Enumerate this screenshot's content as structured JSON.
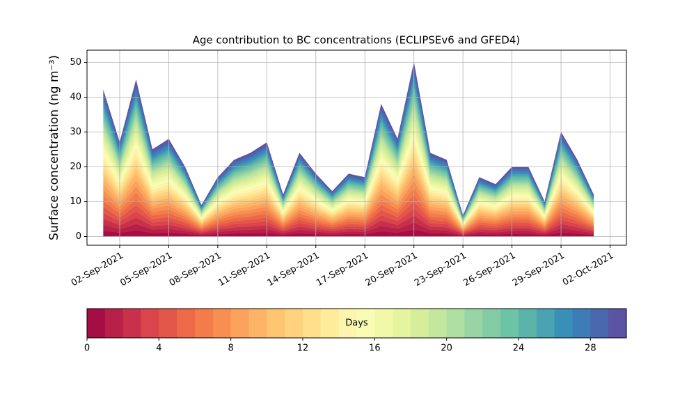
{
  "chart_data": {
    "type": "stackplot",
    "title": "Age contribution to BC concentrations (ECLIPSEv6 and GFED4)",
    "ylabel": "Surface concentration (ng m⁻³)",
    "x": [
      "2021-09-01",
      "2021-09-02",
      "2021-09-03",
      "2021-09-04",
      "2021-09-05",
      "2021-09-06",
      "2021-09-07",
      "2021-09-08",
      "2021-09-09",
      "2021-09-10",
      "2021-09-11",
      "2021-09-12",
      "2021-09-13",
      "2021-09-14",
      "2021-09-15",
      "2021-09-16",
      "2021-09-17",
      "2021-09-18",
      "2021-09-19",
      "2021-09-20",
      "2021-09-21",
      "2021-09-22",
      "2021-09-23",
      "2021-09-24",
      "2021-09-25",
      "2021-09-26",
      "2021-09-27",
      "2021-09-28",
      "2021-09-29",
      "2021-09-30",
      "2021-10-01"
    ],
    "xlim": [
      "2021-08-31",
      "2021-10-03"
    ],
    "xticks": [
      {
        "value": "2021-09-02",
        "label": "02-Sep-2021"
      },
      {
        "value": "2021-09-05",
        "label": "05-Sep-2021"
      },
      {
        "value": "2021-09-08",
        "label": "08-Sep-2021"
      },
      {
        "value": "2021-09-11",
        "label": "11-Sep-2021"
      },
      {
        "value": "2021-09-14",
        "label": "14-Sep-2021"
      },
      {
        "value": "2021-09-17",
        "label": "17-Sep-2021"
      },
      {
        "value": "2021-09-20",
        "label": "20-Sep-2021"
      },
      {
        "value": "2021-09-23",
        "label": "23-Sep-2021"
      },
      {
        "value": "2021-09-26",
        "label": "26-Sep-2021"
      },
      {
        "value": "2021-09-29",
        "label": "29-Sep-2021"
      },
      {
        "value": "2021-10-02",
        "label": "02-Oct-2021"
      }
    ],
    "ylim": [
      -2.5,
      53.5
    ],
    "yticks": [
      0,
      10,
      20,
      30,
      40,
      50
    ],
    "grid": true,
    "series": [
      {
        "color": "#a50e45",
        "values": [
          1.68,
          1.08,
          1.8,
          1.0,
          1.12,
          0.8,
          0.36,
          0.68,
          0.88,
          0.96,
          1.08,
          0.48,
          0.96,
          0.72,
          0.52,
          0.72,
          0.68,
          1.52,
          1.12,
          2.0,
          0.96,
          0.88,
          0.24,
          0.68,
          0.6,
          0.8,
          0.8,
          0.4,
          1.2,
          0.88,
          0.48
        ]
      },
      {
        "color": "#b8204a",
        "values": [
          1.68,
          1.08,
          1.8,
          1.0,
          1.12,
          0.8,
          0.36,
          0.68,
          0.88,
          0.96,
          1.08,
          0.48,
          0.96,
          0.72,
          0.52,
          0.72,
          0.68,
          1.52,
          1.12,
          2.0,
          0.96,
          0.88,
          0.24,
          0.68,
          0.6,
          0.8,
          0.8,
          0.4,
          1.2,
          0.88,
          0.48
        ]
      },
      {
        "color": "#c9314b",
        "values": [
          1.68,
          1.08,
          1.8,
          1.0,
          1.12,
          0.8,
          0.36,
          0.68,
          0.88,
          0.96,
          1.08,
          0.48,
          0.96,
          0.72,
          0.52,
          0.72,
          0.68,
          1.52,
          1.12,
          2.0,
          0.96,
          0.88,
          0.24,
          0.68,
          0.6,
          0.8,
          0.8,
          0.4,
          1.2,
          0.88,
          0.48
        ]
      },
      {
        "color": "#d9444d",
        "values": [
          1.68,
          1.08,
          1.8,
          1.0,
          1.12,
          0.8,
          0.36,
          0.68,
          0.88,
          0.96,
          1.08,
          0.48,
          0.96,
          0.72,
          0.52,
          0.72,
          0.68,
          1.52,
          1.12,
          2.0,
          0.96,
          0.88,
          0.24,
          0.68,
          0.6,
          0.8,
          0.8,
          0.4,
          1.2,
          0.88,
          0.48
        ]
      },
      {
        "color": "#e3574b",
        "values": [
          1.68,
          1.08,
          1.8,
          1.0,
          1.12,
          0.8,
          0.36,
          0.68,
          0.88,
          0.96,
          1.08,
          0.48,
          0.96,
          0.72,
          0.52,
          0.72,
          0.68,
          1.52,
          1.12,
          2.0,
          0.96,
          0.88,
          0.24,
          0.68,
          0.6,
          0.8,
          0.8,
          0.4,
          1.2,
          0.88,
          0.48
        ]
      },
      {
        "color": "#ec6a47",
        "values": [
          1.68,
          1.08,
          1.8,
          1.0,
          1.12,
          0.8,
          0.36,
          0.68,
          0.88,
          0.96,
          1.08,
          0.48,
          0.96,
          0.72,
          0.52,
          0.72,
          0.68,
          1.52,
          1.12,
          2.0,
          0.96,
          0.88,
          0.24,
          0.68,
          0.6,
          0.8,
          0.8,
          0.4,
          1.2,
          0.88,
          0.48
        ]
      },
      {
        "color": "#f47c4a",
        "values": [
          1.68,
          1.08,
          1.8,
          1.0,
          1.12,
          0.8,
          0.36,
          0.68,
          0.88,
          0.96,
          1.08,
          0.48,
          0.96,
          0.72,
          0.52,
          0.72,
          0.68,
          1.52,
          1.12,
          2.0,
          0.96,
          0.88,
          0.24,
          0.68,
          0.6,
          0.8,
          0.8,
          0.4,
          1.2,
          0.88,
          0.48
        ]
      },
      {
        "color": "#f88f52",
        "values": [
          1.68,
          1.08,
          1.8,
          1.0,
          1.12,
          0.8,
          0.36,
          0.68,
          0.88,
          0.96,
          1.08,
          0.48,
          0.96,
          0.72,
          0.52,
          0.72,
          0.68,
          1.52,
          1.12,
          2.0,
          0.96,
          0.88,
          0.24,
          0.68,
          0.6,
          0.8,
          0.8,
          0.4,
          1.2,
          0.88,
          0.48
        ]
      },
      {
        "color": "#fba25c",
        "values": [
          1.68,
          1.08,
          1.8,
          1.0,
          1.12,
          0.8,
          0.36,
          0.68,
          0.88,
          0.96,
          1.08,
          0.48,
          0.96,
          0.72,
          0.52,
          0.72,
          0.68,
          1.52,
          1.12,
          2.0,
          0.96,
          0.88,
          0.24,
          0.68,
          0.6,
          0.8,
          0.8,
          0.4,
          1.2,
          0.88,
          0.48
        ]
      },
      {
        "color": "#fdb466",
        "values": [
          1.68,
          1.08,
          1.8,
          1.0,
          1.12,
          0.8,
          0.36,
          0.68,
          0.88,
          0.96,
          1.08,
          0.48,
          0.96,
          0.72,
          0.52,
          0.72,
          0.68,
          1.52,
          1.12,
          2.0,
          0.96,
          0.88,
          0.24,
          0.68,
          0.6,
          0.8,
          0.8,
          0.4,
          1.2,
          0.88,
          0.48
        ]
      },
      {
        "color": "#fdc472",
        "values": [
          1.4,
          0.9,
          1.5,
          0.83,
          0.93,
          0.67,
          0.3,
          0.57,
          0.73,
          0.8,
          0.9,
          0.4,
          0.8,
          0.6,
          0.43,
          0.6,
          0.57,
          1.27,
          0.93,
          1.67,
          0.8,
          0.73,
          0.2,
          0.57,
          0.5,
          0.67,
          0.67,
          0.33,
          1.0,
          0.73,
          0.4
        ]
      },
      {
        "color": "#fed27f",
        "values": [
          1.4,
          0.9,
          1.5,
          0.83,
          0.93,
          0.67,
          0.3,
          0.57,
          0.73,
          0.8,
          0.9,
          0.4,
          0.8,
          0.6,
          0.43,
          0.6,
          0.57,
          1.27,
          0.93,
          1.67,
          0.8,
          0.73,
          0.2,
          0.57,
          0.5,
          0.67,
          0.67,
          0.33,
          1.0,
          0.73,
          0.4
        ]
      },
      {
        "color": "#fee08b",
        "values": [
          1.4,
          0.9,
          1.5,
          0.83,
          0.93,
          0.67,
          0.3,
          0.57,
          0.73,
          0.8,
          0.9,
          0.4,
          0.8,
          0.6,
          0.43,
          0.6,
          0.57,
          1.27,
          0.93,
          1.67,
          0.8,
          0.73,
          0.2,
          0.57,
          0.5,
          0.67,
          0.67,
          0.33,
          1.0,
          0.73,
          0.4
        ]
      },
      {
        "color": "#feeb9b",
        "values": [
          1.4,
          0.9,
          1.5,
          0.83,
          0.93,
          0.67,
          0.3,
          0.57,
          0.73,
          0.8,
          0.9,
          0.4,
          0.8,
          0.6,
          0.43,
          0.6,
          0.57,
          1.27,
          0.93,
          1.67,
          0.8,
          0.73,
          0.2,
          0.57,
          0.5,
          0.67,
          0.67,
          0.33,
          1.0,
          0.73,
          0.4
        ]
      },
      {
        "color": "#fdf5ad",
        "values": [
          1.4,
          0.9,
          1.5,
          0.83,
          0.93,
          0.67,
          0.3,
          0.57,
          0.73,
          0.8,
          0.9,
          0.4,
          0.8,
          0.6,
          0.43,
          0.6,
          0.57,
          1.27,
          0.93,
          1.67,
          0.8,
          0.73,
          0.2,
          0.57,
          0.5,
          0.67,
          0.67,
          0.33,
          1.0,
          0.73,
          0.4
        ]
      },
      {
        "color": "#f9fcb5",
        "values": [
          1.4,
          0.9,
          1.5,
          0.83,
          0.93,
          0.67,
          0.3,
          0.57,
          0.73,
          0.8,
          0.9,
          0.4,
          0.8,
          0.6,
          0.43,
          0.6,
          0.57,
          1.27,
          0.93,
          1.67,
          0.8,
          0.73,
          0.2,
          0.57,
          0.5,
          0.67,
          0.67,
          0.33,
          1.0,
          0.73,
          0.4
        ]
      },
      {
        "color": "#f1f9a9",
        "values": [
          1.4,
          0.9,
          1.5,
          0.83,
          0.93,
          0.67,
          0.3,
          0.57,
          0.73,
          0.8,
          0.9,
          0.4,
          0.8,
          0.6,
          0.43,
          0.6,
          0.57,
          1.27,
          0.93,
          1.67,
          0.8,
          0.73,
          0.2,
          0.57,
          0.5,
          0.67,
          0.67,
          0.33,
          1.0,
          0.73,
          0.4
        ]
      },
      {
        "color": "#e5f49e",
        "values": [
          1.4,
          0.9,
          1.5,
          0.83,
          0.93,
          0.67,
          0.3,
          0.57,
          0.73,
          0.8,
          0.9,
          0.4,
          0.8,
          0.6,
          0.43,
          0.6,
          0.57,
          1.27,
          0.93,
          1.67,
          0.8,
          0.73,
          0.2,
          0.57,
          0.5,
          0.67,
          0.67,
          0.33,
          1.0,
          0.73,
          0.4
        ]
      },
      {
        "color": "#d6ee9b",
        "values": [
          1.4,
          0.9,
          1.5,
          0.83,
          0.93,
          0.67,
          0.3,
          0.57,
          0.73,
          0.8,
          0.9,
          0.4,
          0.8,
          0.6,
          0.43,
          0.6,
          0.57,
          1.27,
          0.93,
          1.67,
          0.8,
          0.73,
          0.2,
          0.57,
          0.5,
          0.67,
          0.67,
          0.33,
          1.0,
          0.73,
          0.4
        ]
      },
      {
        "color": "#c4e79e",
        "values": [
          1.4,
          0.9,
          1.5,
          0.83,
          0.93,
          0.67,
          0.3,
          0.57,
          0.73,
          0.8,
          0.9,
          0.4,
          0.8,
          0.6,
          0.43,
          0.6,
          0.57,
          1.27,
          0.93,
          1.67,
          0.8,
          0.73,
          0.2,
          0.57,
          0.5,
          0.67,
          0.67,
          0.33,
          1.0,
          0.73,
          0.4
        ]
      },
      {
        "color": "#b0dfa2",
        "values": [
          1.12,
          0.72,
          1.2,
          0.67,
          0.75,
          0.53,
          0.24,
          0.45,
          0.59,
          0.64,
          0.72,
          0.32,
          0.64,
          0.48,
          0.35,
          0.48,
          0.45,
          1.01,
          0.75,
          1.33,
          0.64,
          0.59,
          0.16,
          0.45,
          0.4,
          0.53,
          0.53,
          0.27,
          0.8,
          0.59,
          0.32
        ]
      },
      {
        "color": "#99d5a4",
        "values": [
          1.12,
          0.72,
          1.2,
          0.67,
          0.75,
          0.53,
          0.24,
          0.45,
          0.59,
          0.64,
          0.72,
          0.32,
          0.64,
          0.48,
          0.35,
          0.48,
          0.45,
          1.01,
          0.75,
          1.33,
          0.64,
          0.59,
          0.16,
          0.45,
          0.4,
          0.53,
          0.53,
          0.27,
          0.8,
          0.59,
          0.32
        ]
      },
      {
        "color": "#82cba5",
        "values": [
          1.12,
          0.72,
          1.2,
          0.67,
          0.75,
          0.53,
          0.24,
          0.45,
          0.59,
          0.64,
          0.72,
          0.32,
          0.64,
          0.48,
          0.35,
          0.48,
          0.45,
          1.01,
          0.75,
          1.33,
          0.64,
          0.59,
          0.16,
          0.45,
          0.4,
          0.53,
          0.53,
          0.27,
          0.8,
          0.59,
          0.32
        ]
      },
      {
        "color": "#6cc3a5",
        "values": [
          1.12,
          0.72,
          1.2,
          0.67,
          0.75,
          0.53,
          0.24,
          0.45,
          0.59,
          0.64,
          0.72,
          0.32,
          0.64,
          0.48,
          0.35,
          0.48,
          0.45,
          1.01,
          0.75,
          1.33,
          0.64,
          0.59,
          0.16,
          0.45,
          0.4,
          0.53,
          0.53,
          0.27,
          0.8,
          0.59,
          0.32
        ]
      },
      {
        "color": "#5bb4a9",
        "values": [
          1.12,
          0.72,
          1.2,
          0.67,
          0.75,
          0.53,
          0.24,
          0.45,
          0.59,
          0.64,
          0.72,
          0.32,
          0.64,
          0.48,
          0.35,
          0.48,
          0.45,
          1.01,
          0.75,
          1.33,
          0.64,
          0.59,
          0.16,
          0.45,
          0.4,
          0.53,
          0.53,
          0.27,
          0.8,
          0.59,
          0.32
        ]
      },
      {
        "color": "#4aa2b2",
        "values": [
          1.12,
          0.72,
          1.2,
          0.67,
          0.75,
          0.53,
          0.24,
          0.45,
          0.59,
          0.64,
          0.72,
          0.32,
          0.64,
          0.48,
          0.35,
          0.48,
          0.45,
          1.01,
          0.75,
          1.33,
          0.64,
          0.59,
          0.16,
          0.45,
          0.4,
          0.53,
          0.53,
          0.27,
          0.8,
          0.59,
          0.32
        ]
      },
      {
        "color": "#3a8fb9",
        "values": [
          1.12,
          0.72,
          1.2,
          0.67,
          0.75,
          0.53,
          0.24,
          0.45,
          0.59,
          0.64,
          0.72,
          0.32,
          0.64,
          0.48,
          0.35,
          0.48,
          0.45,
          1.01,
          0.75,
          1.33,
          0.64,
          0.59,
          0.16,
          0.45,
          0.4,
          0.53,
          0.53,
          0.27,
          0.8,
          0.59,
          0.32
        ]
      },
      {
        "color": "#3d7cb7",
        "values": [
          1.12,
          0.72,
          1.2,
          0.67,
          0.75,
          0.53,
          0.24,
          0.45,
          0.59,
          0.64,
          0.72,
          0.32,
          0.64,
          0.48,
          0.35,
          0.48,
          0.45,
          1.01,
          0.75,
          1.33,
          0.64,
          0.59,
          0.16,
          0.45,
          0.4,
          0.53,
          0.53,
          0.27,
          0.8,
          0.59,
          0.32
        ]
      },
      {
        "color": "#4a68ae",
        "values": [
          1.12,
          0.72,
          1.2,
          0.67,
          0.75,
          0.53,
          0.24,
          0.45,
          0.59,
          0.64,
          0.72,
          0.32,
          0.64,
          0.48,
          0.35,
          0.48,
          0.45,
          1.01,
          0.75,
          1.33,
          0.64,
          0.59,
          0.16,
          0.45,
          0.4,
          0.53,
          0.53,
          0.27,
          0.8,
          0.59,
          0.32
        ]
      },
      {
        "color": "#5b53a4",
        "values": [
          1.12,
          0.72,
          1.2,
          0.67,
          0.75,
          0.53,
          0.24,
          0.45,
          0.59,
          0.64,
          0.72,
          0.32,
          0.64,
          0.48,
          0.35,
          0.48,
          0.45,
          1.01,
          0.75,
          1.33,
          0.64,
          0.59,
          0.16,
          0.45,
          0.4,
          0.53,
          0.53,
          0.27,
          0.8,
          0.59,
          0.32
        ]
      }
    ],
    "colorbar": {
      "label": "Days",
      "lim": [
        0,
        30
      ],
      "ticks": [
        0,
        4,
        8,
        12,
        16,
        20,
        24,
        28
      ]
    }
  }
}
